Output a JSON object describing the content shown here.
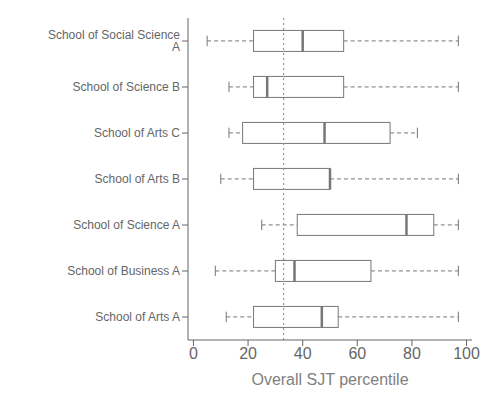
{
  "chart_data": {
    "type": "box",
    "orientation": "horizontal",
    "categories": [
      "School of Social Science A",
      "School of Science B",
      "School of Arts C",
      "School of Arts B",
      "School of Science A",
      "School of Business A",
      "School of Arts A"
    ],
    "low": [
      5,
      13,
      13,
      10,
      25,
      8,
      12
    ],
    "q1": [
      22,
      22,
      18,
      22,
      38,
      30,
      22
    ],
    "median": [
      40,
      27,
      48,
      50,
      78,
      37,
      47
    ],
    "q3": [
      55,
      55,
      72,
      50,
      88,
      65,
      53
    ],
    "high": [
      97,
      97,
      82,
      97,
      97,
      97,
      97
    ],
    "xlabel": "Overall SJT percentile",
    "xlim": [
      -2,
      102
    ],
    "xticks": [
      0,
      20,
      40,
      60,
      80,
      100
    ],
    "grid": false,
    "color": "#777777",
    "annotations": [
      {
        "type": "vline",
        "x": 33,
        "color": "#7799cc"
      }
    ]
  }
}
